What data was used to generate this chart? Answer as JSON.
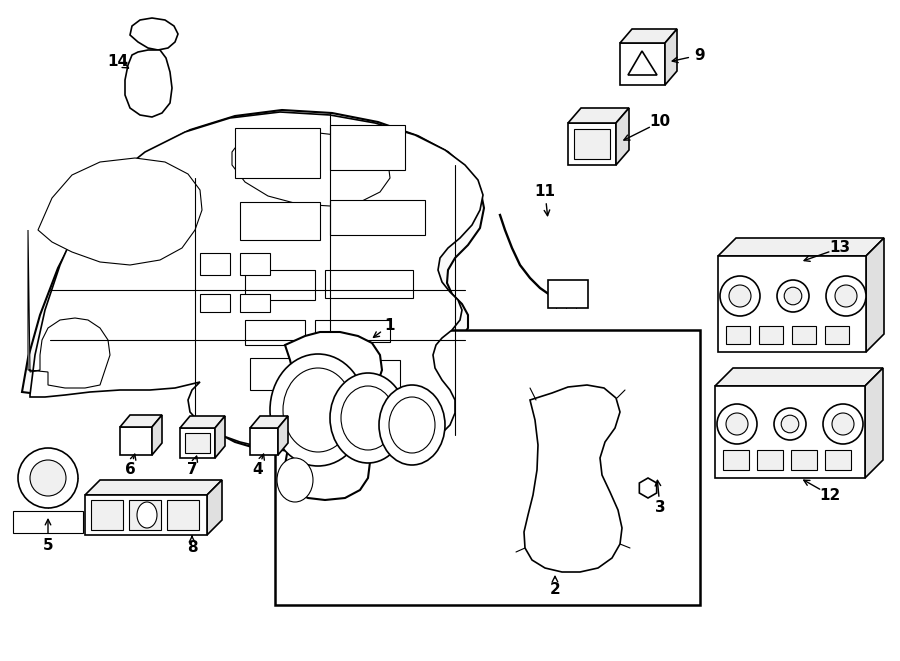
{
  "background_color": "#ffffff",
  "line_color": "#000000",
  "figsize": [
    9.0,
    6.61
  ],
  "dpi": 100,
  "lw": 1.2,
  "thin_lw": 0.8,
  "thick_lw": 1.8
}
